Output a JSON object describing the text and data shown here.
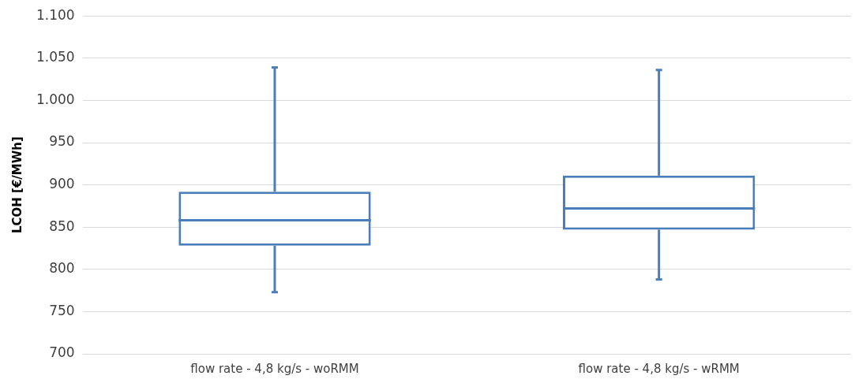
{
  "chart_data": {
    "type": "box",
    "ylabel": "LCOH [€/MWh]",
    "categories": [
      "flow rate - 4,8 kg/s - woRMM",
      "flow rate - 4,8 kg/s - wRMM"
    ],
    "boxes": [
      {
        "low": 773,
        "q1": 828,
        "median": 858,
        "q3": 892,
        "high": 1039
      },
      {
        "low": 788,
        "q1": 847,
        "median": 872,
        "q3": 911,
        "high": 1036
      }
    ],
    "color": "#4a7ebb",
    "ylim": [
      700,
      1100
    ],
    "yticks": [
      700,
      750,
      800,
      850,
      900,
      950,
      {
        "value": 1000,
        "label": "1.000"
      },
      {
        "value": 1050,
        "label": "1.050"
      },
      {
        "value": 1100,
        "label": "1.100"
      }
    ],
    "grid": "y",
    "legend": false
  }
}
